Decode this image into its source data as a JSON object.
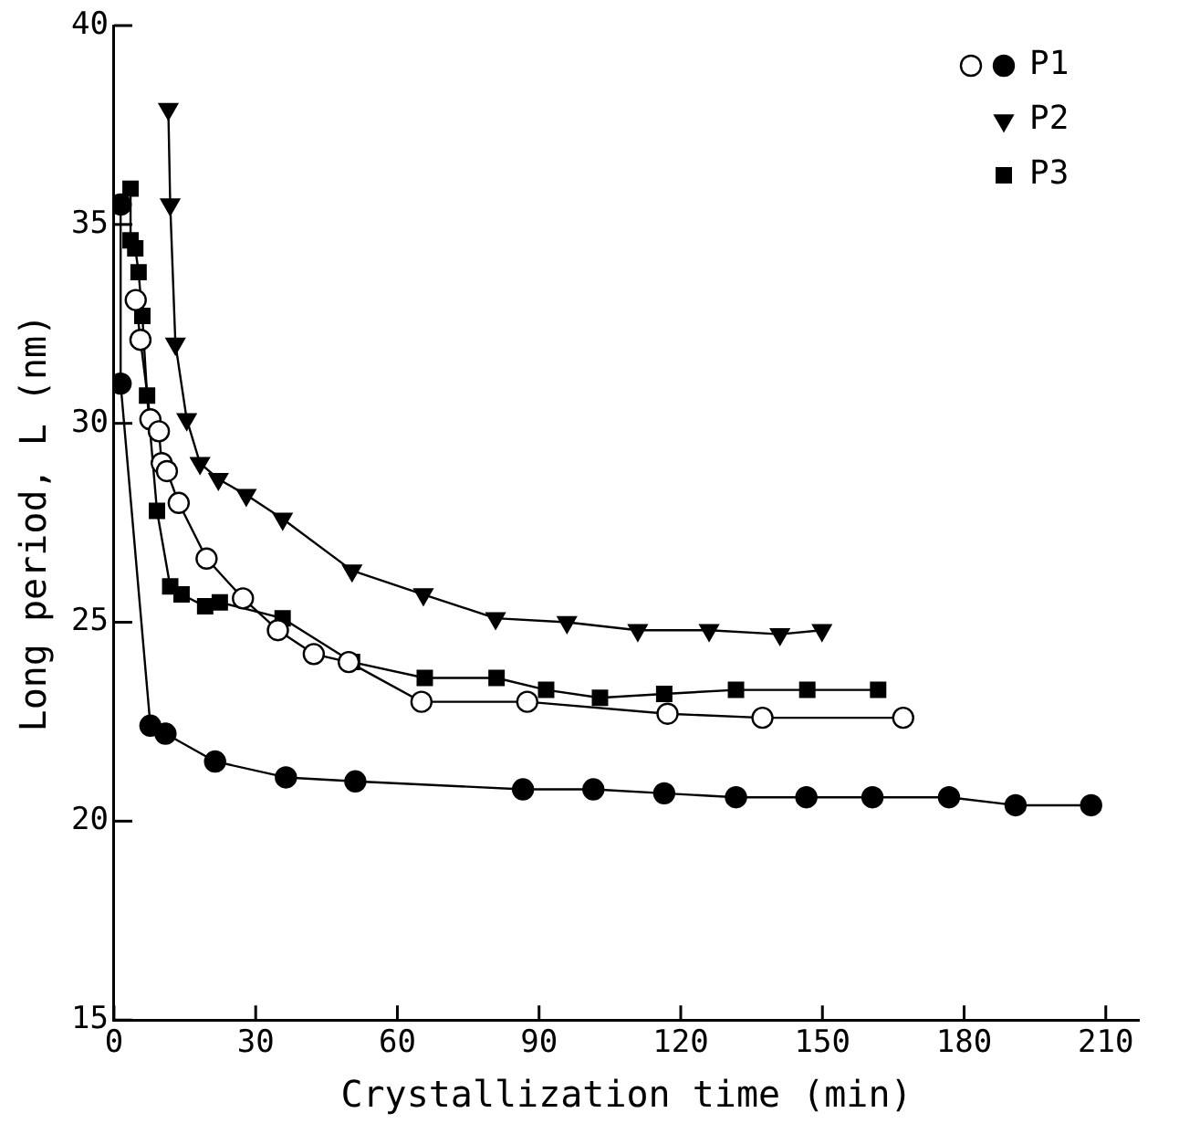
{
  "chart_data": {
    "type": "line",
    "xlabel": "Crystallization time (min)",
    "ylabel": "Long period, L (nm)",
    "xlim": [
      0,
      217
    ],
    "ylim": [
      15,
      40
    ],
    "xticks": [
      0,
      30,
      60,
      90,
      120,
      150,
      180,
      210
    ],
    "yticks": [
      15,
      20,
      25,
      30,
      35,
      40
    ],
    "grid": false,
    "legend": "top right",
    "line_style": "solid",
    "series": [
      {
        "color": "#ffffff",
        "marker": "circle",
        "x": [
          4.6,
          5.6,
          7.7,
          9.5,
          10.1,
          11.2,
          13.7,
          19.6,
          27.3,
          34.7,
          42.3,
          49.7,
          65.1,
          87.5,
          117.2,
          137.3,
          167.1
        ],
        "values": [
          33.1,
          32.1,
          30.1,
          29.8,
          29.0,
          28.8,
          28.0,
          26.6,
          25.6,
          24.8,
          24.2,
          24.0,
          23.0,
          23.0,
          22.7,
          22.6,
          22.6
        ]
      },
      {
        "name": "P1",
        "color": "#000000",
        "marker": "circle",
        "x": [
          1.4,
          1.4,
          7.7,
          10.9,
          21.4,
          36.4,
          51.1,
          86.6,
          101.5,
          116.5,
          131.7,
          146.6,
          160.6,
          176.8,
          190.9,
          206.9
        ],
        "values": [
          35.5,
          31.0,
          22.4,
          22.2,
          21.5,
          21.1,
          21.0,
          20.8,
          20.8,
          20.7,
          20.6,
          20.6,
          20.6,
          20.6,
          20.4,
          20.4
        ]
      },
      {
        "name": "P2",
        "color": "#000000",
        "marker": "triangle",
        "x": [
          11.5,
          11.9,
          13.0,
          15.4,
          18.2,
          22.1,
          28.0,
          35.7,
          50.4,
          65.5,
          80.8,
          95.9,
          110.9,
          126.0,
          141.0,
          149.9
        ],
        "values": [
          37.9,
          35.5,
          32.0,
          30.1,
          29.0,
          28.6,
          28.2,
          27.6,
          26.3,
          25.7,
          25.1,
          25.0,
          24.8,
          24.8,
          24.7,
          24.8
        ]
      },
      {
        "name": "P3",
        "color": "#000000",
        "marker": "square",
        "x": [
          3.5,
          3.5,
          4.5,
          5.2,
          6.0,
          7.0,
          9.1,
          11.9,
          14.3,
          19.3,
          22.4,
          35.7,
          50.4,
          65.8,
          81.0,
          91.5,
          102.9,
          116.5,
          131.7,
          146.8,
          161.8
        ],
        "values": [
          35.9,
          34.6,
          34.4,
          33.8,
          32.7,
          30.7,
          27.8,
          25.9,
          25.7,
          25.4,
          25.5,
          25.1,
          24.0,
          23.6,
          23.6,
          23.3,
          23.1,
          23.2,
          23.3,
          23.3,
          23.3
        ]
      }
    ]
  }
}
